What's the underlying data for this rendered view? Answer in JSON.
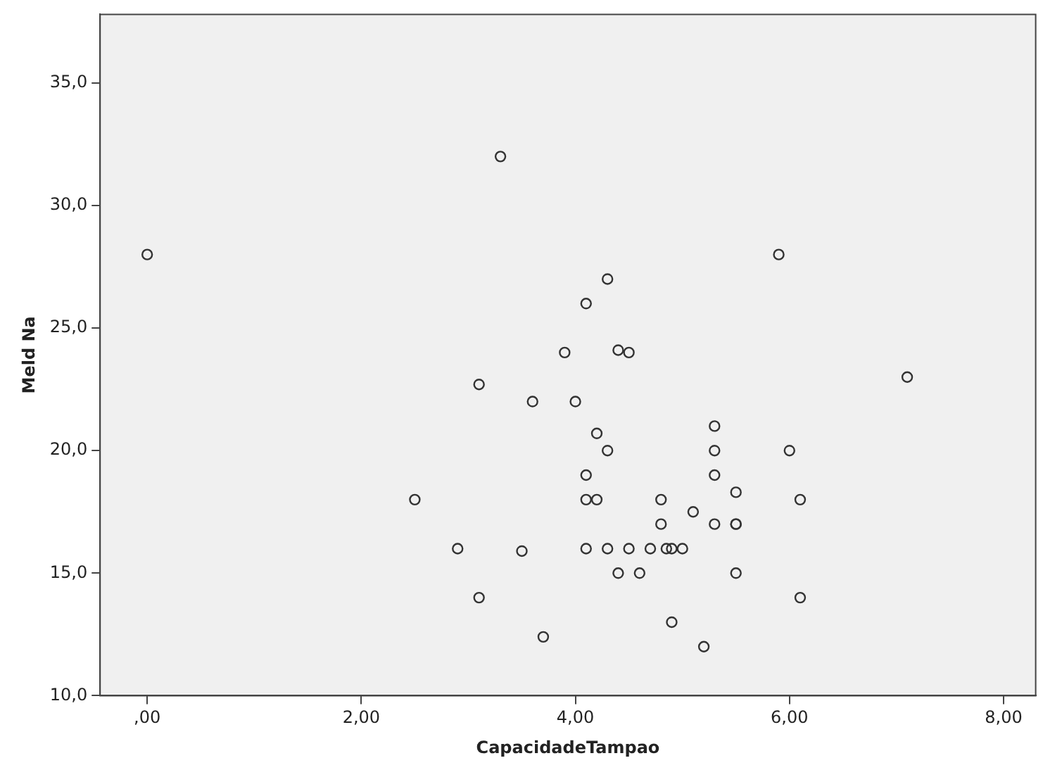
{
  "chart_data": {
    "type": "scatter",
    "xlabel": "CapacidadeTampao",
    "ylabel": "Meld Na",
    "x": [
      0,
      3.3,
      5.9,
      4.3,
      4.1,
      3.9,
      4.4,
      4.5,
      7.1,
      3.1,
      3.6,
      4.0,
      5.3,
      4.2,
      4.3,
      5.3,
      6.0,
      4.1,
      5.3,
      5.5,
      2.5,
      4.1,
      4.2,
      4.8,
      6.1,
      5.1,
      4.8,
      5.3,
      5.5,
      5.5,
      2.9,
      3.5,
      4.1,
      4.3,
      4.5,
      4.7,
      4.85,
      4.9,
      5.0,
      4.4,
      4.6,
      5.5,
      3.1,
      6.1,
      4.9,
      3.7,
      5.2
    ],
    "values": [
      28,
      32,
      28,
      27,
      26,
      24,
      24.1,
      24,
      23,
      22.7,
      22,
      22,
      21,
      20.7,
      20,
      20,
      20,
      19,
      19,
      18.3,
      18,
      18,
      18,
      18,
      18,
      17.5,
      17,
      17,
      17,
      17,
      16,
      15.9,
      16,
      16,
      16,
      16,
      16,
      16,
      16,
      15,
      15,
      15,
      14,
      14,
      13,
      12.4,
      12
    ],
    "color": "#333333",
    "marker": "circle",
    "xlim": [
      -0.44,
      8.3
    ],
    "ylim": [
      10,
      37.8
    ],
    "xticks": [
      {
        "value": 0,
        "label": ",00"
      },
      {
        "value": 2,
        "label": "2,00"
      },
      {
        "value": 4,
        "label": "4,00"
      },
      {
        "value": 6,
        "label": "6,00"
      },
      {
        "value": 8,
        "label": "8,00"
      }
    ],
    "yticks": [
      {
        "value": 10,
        "label": "10,0"
      },
      {
        "value": 15,
        "label": "15,0"
      },
      {
        "value": 20,
        "label": "20,0"
      },
      {
        "value": 25,
        "label": "25,0"
      },
      {
        "value": 30,
        "label": "30,0"
      },
      {
        "value": 35,
        "label": "35,0"
      }
    ],
    "grid": false,
    "legend": false
  }
}
